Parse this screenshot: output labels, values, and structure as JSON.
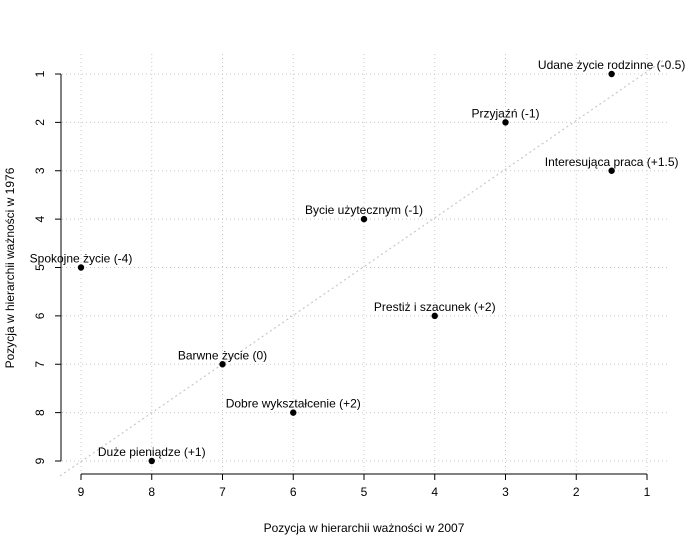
{
  "chart_data": {
    "type": "scatter",
    "title": "",
    "xlabel": "Pozycja w hierarchii ważności w 2007",
    "ylabel": "Pozycja w hierarchii ważności w 1976",
    "xlim": [
      9,
      1
    ],
    "ylim": [
      9,
      1
    ],
    "x_reversed": true,
    "y_reversed": true,
    "x_ticks": [
      "9",
      "8",
      "7",
      "6",
      "5",
      "4",
      "3",
      "2",
      "1"
    ],
    "y_ticks": [
      "1",
      "2",
      "3",
      "4",
      "5",
      "6",
      "7",
      "8",
      "9"
    ],
    "grid": true,
    "reference_line": "y = x (dotted diagonal)",
    "points": [
      {
        "label": "Udane życie rodzinne (-0.5)",
        "x": 1.5,
        "y": 1
      },
      {
        "label": "Przyjaźń (-1)",
        "x": 3,
        "y": 2
      },
      {
        "label": "Interesująca praca (+1.5)",
        "x": 1.5,
        "y": 3
      },
      {
        "label": "Bycie użytecznym (-1)",
        "x": 5,
        "y": 4
      },
      {
        "label": "Spokojne życie (-4)",
        "x": 9,
        "y": 5
      },
      {
        "label": "Prestiż i szacunek (+2)",
        "x": 4,
        "y": 6
      },
      {
        "label": "Barwne życie (0)",
        "x": 7,
        "y": 7
      },
      {
        "label": "Dobre wykształcenie (+2)",
        "x": 6,
        "y": 8
      },
      {
        "label": "Duże pieniądze (+1)",
        "x": 8,
        "y": 9
      }
    ],
    "colors": {
      "points": "#000000",
      "grid": "#c8c8c8",
      "diagonal": "#c8c8c8",
      "axis": "#000000"
    }
  }
}
